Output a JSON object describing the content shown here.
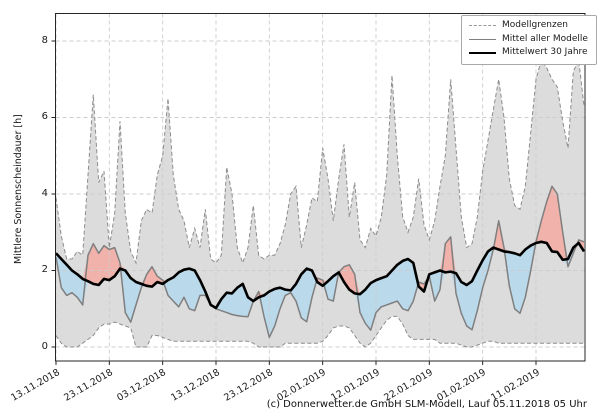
{
  "caption": "(c) Donnerwetter.de GmbH SLM-Modell, Lauf 05.11.2018 05 Uhr",
  "legend": {
    "entries": [
      {
        "label": "Modellgrenzen",
        "style": "dashed-gray"
      },
      {
        "label": "Mittel aller Modelle",
        "style": "solid-gray"
      },
      {
        "label": "Mittelwert 30 Jahre",
        "style": "thick-black"
      }
    ]
  },
  "chart_data": {
    "type": "line",
    "title": "",
    "xlabel": "",
    "ylabel": "Mittlere Sonnenscheindauer [h]",
    "ylim": [
      -0.37,
      8.73
    ],
    "yticks": [
      0,
      2,
      4,
      6,
      8
    ],
    "grid": true,
    "legend_position": "top-right",
    "x_axis": {
      "start_date": "13.11.2018",
      "step_days": 1,
      "n_points": 100
    },
    "xticks": [
      {
        "label": "13.11.2018",
        "day": 0
      },
      {
        "label": "23.11.2018",
        "day": 10
      },
      {
        "label": "03.12.2018",
        "day": 20
      },
      {
        "label": "13.12.2018",
        "day": 30
      },
      {
        "label": "23.12.2018",
        "day": 40
      },
      {
        "label": "02.01.2019",
        "day": 50
      },
      {
        "label": "12.01.2019",
        "day": 60
      },
      {
        "label": "22.01.2019",
        "day": 70
      },
      {
        "label": "01.02.2019",
        "day": 80
      },
      {
        "label": "11.02.2019",
        "day": 90
      }
    ],
    "series": [
      {
        "name": "Modellgrenzen (Maximum)",
        "role": "upper-bound",
        "values": [
          3.9,
          2.9,
          2.3,
          2.3,
          2.5,
          2.4,
          4.5,
          6.6,
          4.3,
          4.6,
          2.6,
          3.5,
          5.9,
          3.5,
          2.5,
          2.2,
          3.3,
          3.6,
          3.5,
          4.5,
          5.0,
          6.5,
          4.5,
          3.6,
          3.3,
          2.6,
          3.1,
          2.6,
          3.6,
          2.3,
          2.2,
          2.4,
          4.7,
          4.0,
          2.6,
          2.2,
          2.6,
          3.7,
          2.4,
          2.3,
          2.4,
          2.4,
          2.7,
          3.2,
          4.0,
          4.2,
          2.6,
          3.2,
          3.9,
          3.8,
          5.2,
          4.4,
          3.3,
          4.4,
          5.3,
          3.4,
          4.3,
          2.8,
          2.6,
          3.1,
          2.9,
          3.4,
          4.5,
          7.1,
          5.0,
          3.4,
          3.0,
          3.4,
          4.4,
          3.2,
          2.8,
          3.3,
          4.2,
          5.0,
          7.0,
          5.2,
          3.4,
          2.6,
          2.7,
          3.4,
          4.6,
          5.4,
          6.2,
          7.0,
          6.0,
          4.4,
          3.7,
          3.6,
          4.2,
          5.6,
          7.0,
          7.5,
          7.3,
          7.0,
          6.8,
          5.9,
          5.2,
          7.2,
          7.5,
          6.3
        ]
      },
      {
        "name": "Modellgrenzen (Minimum)",
        "role": "lower-bound",
        "values": [
          0.3,
          0.1,
          0.0,
          0.0,
          0.0,
          0.1,
          0.2,
          0.3,
          0.5,
          0.6,
          0.6,
          0.65,
          0.6,
          0.55,
          0.5,
          0.0,
          0.0,
          0.0,
          0.3,
          0.3,
          0.25,
          0.2,
          0.15,
          0.15,
          0.15,
          0.15,
          0.15,
          0.15,
          0.15,
          0.15,
          0.15,
          0.15,
          0.15,
          0.15,
          0.15,
          0.15,
          0.15,
          0.1,
          0.0,
          0.0,
          0.0,
          0.0,
          0.0,
          0.1,
          0.1,
          0.1,
          0.1,
          0.1,
          0.1,
          0.1,
          0.15,
          0.3,
          0.5,
          0.55,
          0.55,
          0.5,
          0.3,
          0.1,
          0.0,
          0.1,
          0.3,
          0.5,
          0.7,
          0.8,
          0.8,
          0.6,
          0.3,
          0.2,
          0.2,
          0.2,
          0.2,
          0.2,
          0.1,
          0.1,
          0.1,
          0.1,
          0.05,
          0.0,
          0.0,
          0.05,
          0.1,
          0.15,
          0.15,
          0.1,
          0.1,
          0.1,
          0.1,
          0.1,
          0.1,
          0.1,
          0.1,
          0.1,
          0.1,
          0.1,
          0.1,
          0.1,
          0.1,
          0.1,
          0.1,
          0.1
        ]
      },
      {
        "name": "Mittel aller Modelle",
        "role": "model-mean",
        "values": [
          2.35,
          1.55,
          1.35,
          1.42,
          1.3,
          1.1,
          2.4,
          2.7,
          2.45,
          2.65,
          2.55,
          2.6,
          2.2,
          0.9,
          0.65,
          1.1,
          1.55,
          1.9,
          2.1,
          1.85,
          1.75,
          1.35,
          1.2,
          1.05,
          1.3,
          1.0,
          0.95,
          1.35,
          1.35,
          1.1,
          1.0,
          0.95,
          0.9,
          0.85,
          0.82,
          0.8,
          0.79,
          1.2,
          1.45,
          0.8,
          0.25,
          0.55,
          1.0,
          1.35,
          1.42,
          1.2,
          0.76,
          0.66,
          1.3,
          1.8,
          1.75,
          1.25,
          1.2,
          1.95,
          2.1,
          2.15,
          1.9,
          0.9,
          0.62,
          0.44,
          0.9,
          1.05,
          1.1,
          1.15,
          1.2,
          1.0,
          0.95,
          1.2,
          1.7,
          1.65,
          1.85,
          1.2,
          1.5,
          2.7,
          2.88,
          1.4,
          0.88,
          0.55,
          0.45,
          0.95,
          1.55,
          2.0,
          2.55,
          3.3,
          2.6,
          1.6,
          1.0,
          0.88,
          1.3,
          2.0,
          2.75,
          3.3,
          3.8,
          4.2,
          4.0,
          3.0,
          2.1,
          2.45,
          2.8,
          2.75
        ]
      },
      {
        "name": "Mittelwert 30 Jahre",
        "role": "climate-mean",
        "values": [
          2.45,
          2.3,
          2.15,
          2.0,
          1.9,
          1.78,
          1.72,
          1.65,
          1.62,
          1.78,
          1.75,
          1.85,
          2.05,
          2.0,
          1.8,
          1.7,
          1.65,
          1.6,
          1.58,
          1.7,
          1.65,
          1.75,
          1.82,
          1.95,
          2.02,
          2.05,
          2.0,
          1.75,
          1.45,
          1.1,
          1.02,
          1.25,
          1.42,
          1.4,
          1.55,
          1.65,
          1.3,
          1.2,
          1.3,
          1.35,
          1.45,
          1.52,
          1.55,
          1.5,
          1.48,
          1.65,
          1.9,
          2.05,
          2.0,
          1.7,
          1.6,
          1.72,
          1.85,
          1.95,
          1.7,
          1.5,
          1.4,
          1.38,
          1.5,
          1.67,
          1.75,
          1.8,
          1.85,
          2.0,
          2.15,
          2.25,
          2.3,
          2.2,
          1.58,
          1.45,
          1.9,
          1.95,
          2.0,
          1.95,
          1.97,
          1.93,
          1.7,
          1.62,
          1.72,
          2.0,
          2.27,
          2.5,
          2.6,
          2.55,
          2.5,
          2.48,
          2.45,
          2.4,
          2.55,
          2.65,
          2.72,
          2.75,
          2.72,
          2.5,
          2.48,
          2.28,
          2.3,
          2.6,
          2.72,
          2.5
        ]
      }
    ],
    "fills": [
      {
        "name": "model-range",
        "between": [
          "upper-bound",
          "lower-bound"
        ]
      },
      {
        "name": "above-climate",
        "between": [
          "model-mean",
          "climate-mean"
        ],
        "condition": "model > climate"
      },
      {
        "name": "below-climate",
        "between": [
          "climate-mean",
          "model-mean"
        ],
        "condition": "model < climate"
      }
    ],
    "colors": {
      "range_fill": "#dcdcdc",
      "above_fill": "#f0b2aa",
      "below_fill": "#bad9eb",
      "boundary_line": "#8c8c8c",
      "model_mean_line": "#7f7f7f",
      "climate_line": "#000000",
      "grid": "#cccccc",
      "spine": "#262626"
    }
  }
}
